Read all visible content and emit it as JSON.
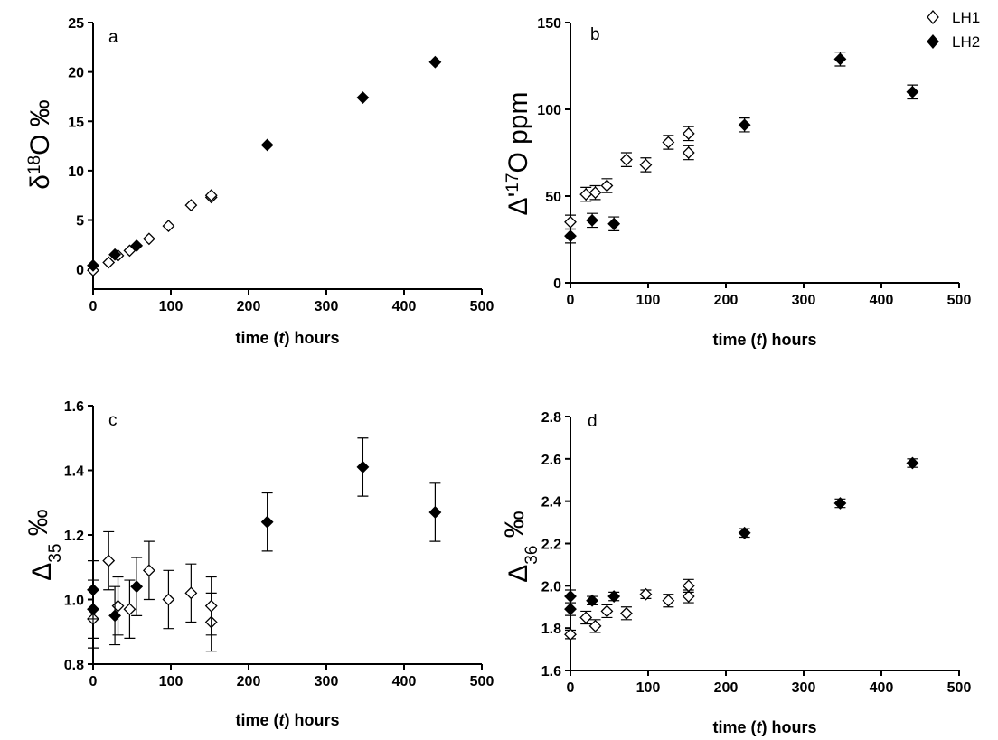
{
  "legend": {
    "entries": [
      {
        "name": "LH1",
        "marker": "open-diamond"
      },
      {
        "name": "LH2",
        "marker": "filled-diamond"
      }
    ],
    "placement": "top-right"
  },
  "colors": {
    "axis": "#000000",
    "marker_fill": "#000000",
    "open_fill": "#ffffff"
  },
  "chart_data": [
    {
      "type": "scatter",
      "panel": "a",
      "xlabel_parts": [
        "time (",
        "t",
        ") hours"
      ],
      "ylabel_parts": [
        "δ",
        "18",
        "O ‰"
      ],
      "xlim": [
        0,
        500
      ],
      "ylim": [
        -2,
        25
      ],
      "xticks": [
        0,
        100,
        200,
        300,
        400,
        500
      ],
      "yticks": [
        0,
        5,
        10,
        15,
        20,
        25
      ],
      "series": [
        {
          "name": "LH1",
          "marker": "open-diamond",
          "points": [
            [
              0,
              -0.1
            ],
            [
              20,
              0.7
            ],
            [
              32,
              1.4
            ],
            [
              47,
              1.9
            ],
            [
              72,
              3.1
            ],
            [
              97,
              4.4
            ],
            [
              126,
              6.5
            ],
            [
              152,
              7.3
            ],
            [
              152,
              7.5
            ]
          ]
        },
        {
          "name": "LH2",
          "marker": "filled-diamond",
          "points": [
            [
              0,
              0.4
            ],
            [
              28,
              1.5
            ],
            [
              56,
              2.4
            ],
            [
              224,
              12.6
            ],
            [
              347,
              17.4
            ],
            [
              440,
              21.0
            ]
          ]
        }
      ]
    },
    {
      "type": "scatter",
      "panel": "b",
      "xlabel_parts": [
        "time (",
        "t",
        ") hours"
      ],
      "ylabel_parts": [
        "Δ'",
        "17",
        "O ppm"
      ],
      "xlim": [
        0,
        500
      ],
      "ylim": [
        0,
        150
      ],
      "xticks": [
        0,
        100,
        200,
        300,
        400,
        500
      ],
      "yticks": [
        0,
        50,
        100,
        150
      ],
      "series": [
        {
          "name": "LH1",
          "marker": "open-diamond",
          "points": [
            [
              0,
              35,
              4
            ],
            [
              20,
              51,
              4
            ],
            [
              32,
              52,
              4
            ],
            [
              47,
              56,
              4
            ],
            [
              72,
              71,
              4
            ],
            [
              97,
              68,
              4
            ],
            [
              126,
              81,
              4
            ],
            [
              152,
              75,
              4
            ],
            [
              152,
              86,
              4
            ]
          ]
        },
        {
          "name": "LH2",
          "marker": "filled-diamond",
          "points": [
            [
              0,
              27,
              4
            ],
            [
              28,
              36,
              4
            ],
            [
              56,
              34,
              4
            ],
            [
              224,
              91,
              4
            ],
            [
              347,
              129,
              4
            ],
            [
              440,
              110,
              4
            ]
          ]
        }
      ]
    },
    {
      "type": "scatter",
      "panel": "c",
      "xlabel_parts": [
        "time (",
        "t",
        ") hours"
      ],
      "ylabel_parts": [
        "Δ",
        "35",
        " ‰"
      ],
      "xlim": [
        0,
        500
      ],
      "ylim": [
        0.8,
        1.6
      ],
      "xticks": [
        0,
        100,
        200,
        300,
        400,
        500
      ],
      "yticks": [
        0.8,
        1.0,
        1.2,
        1.4,
        1.6
      ],
      "ytick_labels": [
        "0.8",
        "1.0",
        "1.2",
        "1.4",
        "1.6"
      ],
      "series": [
        {
          "name": "LH1",
          "marker": "open-diamond",
          "points": [
            [
              0,
              0.94,
              0.09
            ],
            [
              20,
              1.12,
              0.09
            ],
            [
              32,
              0.98,
              0.09
            ],
            [
              47,
              0.97,
              0.09
            ],
            [
              72,
              1.09,
              0.09
            ],
            [
              97,
              1.0,
              0.09
            ],
            [
              126,
              1.02,
              0.09
            ],
            [
              152,
              0.93,
              0.09
            ],
            [
              152,
              0.98,
              0.09
            ]
          ]
        },
        {
          "name": "LH2",
          "marker": "filled-diamond",
          "points": [
            [
              0,
              0.97,
              0.09
            ],
            [
              0,
              1.03,
              0.09
            ],
            [
              28,
              0.95,
              0.09
            ],
            [
              56,
              1.04,
              0.09
            ],
            [
              224,
              1.24,
              0.09
            ],
            [
              347,
              1.41,
              0.09
            ],
            [
              440,
              1.27,
              0.09
            ]
          ]
        }
      ]
    },
    {
      "type": "scatter",
      "panel": "d",
      "xlabel_parts": [
        "time (",
        "t",
        ") hours"
      ],
      "ylabel_parts": [
        "Δ",
        "36",
        " ‰"
      ],
      "xlim": [
        0,
        500
      ],
      "ylim": [
        1.6,
        2.8
      ],
      "xticks": [
        0,
        100,
        200,
        300,
        400,
        500
      ],
      "yticks": [
        1.6,
        1.8,
        2.0,
        2.2,
        2.4,
        2.6,
        2.8
      ],
      "ytick_labels": [
        "1.6",
        "1.8",
        "2.0",
        "2.2",
        "2.4",
        "2.6",
        "2.8"
      ],
      "series": [
        {
          "name": "LH1",
          "marker": "open-diamond",
          "points": [
            [
              0,
              1.77,
              0.02
            ],
            [
              20,
              1.85,
              0.03
            ],
            [
              32,
              1.81,
              0.03
            ],
            [
              47,
              1.88,
              0.03
            ],
            [
              72,
              1.87,
              0.03
            ],
            [
              97,
              1.96,
              0.02
            ],
            [
              126,
              1.93,
              0.03
            ],
            [
              152,
              1.95,
              0.03
            ],
            [
              152,
              2.0,
              0.03
            ]
          ]
        },
        {
          "name": "LH2",
          "marker": "filled-diamond",
          "points": [
            [
              0,
              1.89,
              0.03
            ],
            [
              0,
              1.95,
              0.03
            ],
            [
              28,
              1.93,
              0.02
            ],
            [
              56,
              1.95,
              0.02
            ],
            [
              224,
              2.25,
              0.02
            ],
            [
              347,
              2.39,
              0.02
            ],
            [
              440,
              2.58,
              0.02
            ]
          ]
        }
      ]
    }
  ]
}
